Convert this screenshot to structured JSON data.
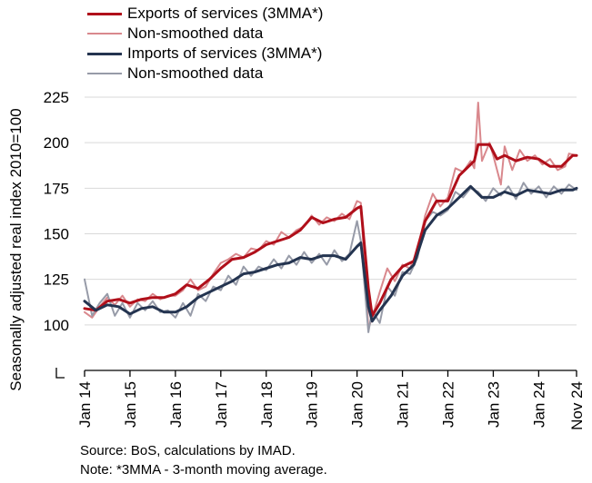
{
  "chart_data": {
    "type": "line",
    "ylabel": "Seasonally adjusted real index 2010=100",
    "ylim": [
      75,
      225
    ],
    "yticks": [
      100,
      125,
      150,
      175,
      200,
      225
    ],
    "x_start": "Jan 14",
    "x_end": "Nov 24",
    "xtick_labels": [
      "Jan 14",
      "Jan 15",
      "Jan 16",
      "Jan 17",
      "Jan 18",
      "Jan 19",
      "Jan 20",
      "Jan 21",
      "Jan 22",
      "Jan 23",
      "Jan 24",
      "Nov 24"
    ],
    "legend_placement": "top-left",
    "grid": "horizontal",
    "series": [
      {
        "name": "Exports of services (3MMA*)",
        "color": "#b00f1a",
        "width": 3,
        "points": [
          [
            "Jan 14",
            109
          ],
          [
            "Apr 14",
            108
          ],
          [
            "Jul 14",
            113
          ],
          [
            "Oct 14",
            114
          ],
          [
            "Jan 15",
            112
          ],
          [
            "Apr 15",
            114
          ],
          [
            "Jul 15",
            115
          ],
          [
            "Oct 15",
            115
          ],
          [
            "Jan 16",
            117
          ],
          [
            "Apr 16",
            122
          ],
          [
            "Jul 16",
            120
          ],
          [
            "Oct 16",
            125
          ],
          [
            "Jan 17",
            131
          ],
          [
            "Apr 17",
            136
          ],
          [
            "Jul 17",
            137
          ],
          [
            "Oct 17",
            140
          ],
          [
            "Jan 18",
            144
          ],
          [
            "Apr 18",
            146
          ],
          [
            "Jul 18",
            148
          ],
          [
            "Oct 18",
            152
          ],
          [
            "Jan 19",
            159
          ],
          [
            "Apr 19",
            156
          ],
          [
            "Jul 19",
            158
          ],
          [
            "Oct 19",
            159
          ],
          [
            "Jan 20",
            164
          ],
          [
            "Feb 20",
            165
          ],
          [
            "Apr 20",
            120
          ],
          [
            "May 20",
            105
          ],
          [
            "Jul 20",
            112
          ],
          [
            "Oct 20",
            125
          ],
          [
            "Jan 21",
            132
          ],
          [
            "Apr 21",
            135
          ],
          [
            "Jul 21",
            157
          ],
          [
            "Oct 21",
            168
          ],
          [
            "Jan 22",
            168
          ],
          [
            "Apr 22",
            182
          ],
          [
            "Jul 22",
            188
          ],
          [
            "Aug 22",
            190
          ],
          [
            "Sep 22",
            199
          ],
          [
            "Dec 22",
            199
          ],
          [
            "Feb 23",
            191
          ],
          [
            "Apr 23",
            193
          ],
          [
            "Jul 23",
            190
          ],
          [
            "Oct 23",
            192
          ],
          [
            "Jan 24",
            191
          ],
          [
            "Apr 24",
            187
          ],
          [
            "Jul 24",
            187
          ],
          [
            "Oct 24",
            193
          ],
          [
            "Nov 24",
            193
          ]
        ]
      },
      {
        "name": "Non-smoothed data",
        "color": "#d9888d",
        "width": 2,
        "points": [
          [
            "Jan 14",
            107
          ],
          [
            "Mar 14",
            104
          ],
          [
            "May 14",
            110
          ],
          [
            "Jul 14",
            115
          ],
          [
            "Sep 14",
            111
          ],
          [
            "Nov 14",
            116
          ],
          [
            "Jan 15",
            110
          ],
          [
            "Mar 15",
            114
          ],
          [
            "May 15",
            113
          ],
          [
            "Jul 15",
            117
          ],
          [
            "Sep 15",
            114
          ],
          [
            "Nov 15",
            116
          ],
          [
            "Jan 16",
            116
          ],
          [
            "Mar 16",
            119
          ],
          [
            "May 16",
            125
          ],
          [
            "Jul 16",
            119
          ],
          [
            "Sep 16",
            121
          ],
          [
            "Nov 16",
            128
          ],
          [
            "Jan 17",
            134
          ],
          [
            "Mar 17",
            136
          ],
          [
            "May 17",
            139
          ],
          [
            "Jul 17",
            137
          ],
          [
            "Sep 17",
            142
          ],
          [
            "Nov 17",
            141
          ],
          [
            "Jan 18",
            146
          ],
          [
            "Mar 18",
            144
          ],
          [
            "May 18",
            151
          ],
          [
            "Jul 18",
            148
          ],
          [
            "Sep 18",
            152
          ],
          [
            "Nov 18",
            154
          ],
          [
            "Jan 19",
            160
          ],
          [
            "Mar 19",
            155
          ],
          [
            "May 19",
            159
          ],
          [
            "Jul 19",
            157
          ],
          [
            "Sep 19",
            161
          ],
          [
            "Nov 19",
            158
          ],
          [
            "Jan 20",
            168
          ],
          [
            "Feb 20",
            167
          ],
          [
            "Apr 20",
            98
          ],
          [
            "May 20",
            104
          ],
          [
            "Jul 20",
            118
          ],
          [
            "Sep 20",
            131
          ],
          [
            "Nov 20",
            124
          ],
          [
            "Jan 21",
            133
          ],
          [
            "Mar 21",
            131
          ],
          [
            "May 21",
            141
          ],
          [
            "Jul 21",
            160
          ],
          [
            "Sep 21",
            172
          ],
          [
            "Nov 21",
            165
          ],
          [
            "Jan 22",
            170
          ],
          [
            "Mar 22",
            186
          ],
          [
            "May 22",
            184
          ],
          [
            "Jul 22",
            190
          ],
          [
            "Aug 22",
            186
          ],
          [
            "Sep 22",
            222
          ],
          [
            "Oct 22",
            190
          ],
          [
            "Dec 22",
            200
          ],
          [
            "Jan 23",
            193
          ],
          [
            "Mar 23",
            177
          ],
          [
            "Apr 23",
            198
          ],
          [
            "Jun 23",
            185
          ],
          [
            "Aug 23",
            196
          ],
          [
            "Oct 23",
            190
          ],
          [
            "Dec 23",
            193
          ],
          [
            "Feb 24",
            188
          ],
          [
            "Apr 24",
            191
          ],
          [
            "Jun 24",
            185
          ],
          [
            "Aug 24",
            187
          ],
          [
            "Sep 24",
            194
          ],
          [
            "Nov 24",
            193
          ]
        ]
      },
      {
        "name": "Imports of services (3MMA*)",
        "color": "#243450",
        "width": 3,
        "points": [
          [
            "Jan 14",
            113
          ],
          [
            "Apr 14",
            108
          ],
          [
            "Jul 14",
            111
          ],
          [
            "Oct 14",
            110
          ],
          [
            "Jan 15",
            106
          ],
          [
            "Apr 15",
            109
          ],
          [
            "Jul 15",
            110
          ],
          [
            "Oct 15",
            107
          ],
          [
            "Jan 16",
            107
          ],
          [
            "Apr 16",
            110
          ],
          [
            "Jul 16",
            115
          ],
          [
            "Oct 16",
            118
          ],
          [
            "Jan 17",
            121
          ],
          [
            "Apr 17",
            124
          ],
          [
            "Jul 17",
            128
          ],
          [
            "Oct 17",
            129
          ],
          [
            "Jan 18",
            131
          ],
          [
            "Apr 18",
            133
          ],
          [
            "Jul 18",
            134
          ],
          [
            "Oct 18",
            137
          ],
          [
            "Jan 19",
            136
          ],
          [
            "Apr 19",
            138
          ],
          [
            "Jul 19",
            138
          ],
          [
            "Oct 19",
            136
          ],
          [
            "Jan 20",
            143
          ],
          [
            "Feb 20",
            145
          ],
          [
            "Apr 20",
            110
          ],
          [
            "May 20",
            102
          ],
          [
            "Jul 20",
            108
          ],
          [
            "Oct 20",
            116
          ],
          [
            "Jan 21",
            127
          ],
          [
            "Apr 21",
            133
          ],
          [
            "Jul 21",
            152
          ],
          [
            "Oct 21",
            160
          ],
          [
            "Jan 22",
            164
          ],
          [
            "Apr 22",
            170
          ],
          [
            "Jul 22",
            176
          ],
          [
            "Oct 22",
            170
          ],
          [
            "Jan 23",
            170
          ],
          [
            "Apr 23",
            173
          ],
          [
            "Jul 23",
            171
          ],
          [
            "Oct 23",
            174
          ],
          [
            "Jan 24",
            173
          ],
          [
            "Apr 24",
            172
          ],
          [
            "Jul 24",
            174
          ],
          [
            "Oct 24",
            174
          ],
          [
            "Nov 24",
            175
          ]
        ]
      },
      {
        "name": "Non-smoothed data",
        "color": "#979ba8",
        "width": 2,
        "points": [
          [
            "Jan 14",
            125
          ],
          [
            "Mar 14",
            105
          ],
          [
            "May 14",
            112
          ],
          [
            "Jul 14",
            117
          ],
          [
            "Sep 14",
            105
          ],
          [
            "Nov 14",
            112
          ],
          [
            "Jan 15",
            104
          ],
          [
            "Mar 15",
            112
          ],
          [
            "May 15",
            108
          ],
          [
            "Jul 15",
            113
          ],
          [
            "Sep 15",
            107
          ],
          [
            "Nov 15",
            108
          ],
          [
            "Jan 16",
            104
          ],
          [
            "Mar 16",
            112
          ],
          [
            "May 16",
            105
          ],
          [
            "Jul 16",
            117
          ],
          [
            "Sep 16",
            113
          ],
          [
            "Nov 16",
            121
          ],
          [
            "Jan 17",
            119
          ],
          [
            "Mar 17",
            127
          ],
          [
            "May 17",
            122
          ],
          [
            "Jul 17",
            132
          ],
          [
            "Sep 17",
            127
          ],
          [
            "Nov 17",
            132
          ],
          [
            "Jan 18",
            130
          ],
          [
            "Mar 18",
            136
          ],
          [
            "May 18",
            131
          ],
          [
            "Jul 18",
            138
          ],
          [
            "Sep 18",
            133
          ],
          [
            "Nov 18",
            140
          ],
          [
            "Jan 19",
            134
          ],
          [
            "Mar 19",
            139
          ],
          [
            "May 19",
            133
          ],
          [
            "Jul 19",
            141
          ],
          [
            "Sep 19",
            135
          ],
          [
            "Nov 19",
            139
          ],
          [
            "Jan 20",
            157
          ],
          [
            "Feb 20",
            146
          ],
          [
            "Apr 20",
            96
          ],
          [
            "May 20",
            108
          ],
          [
            "Jul 20",
            101
          ],
          [
            "Sep 20",
            121
          ],
          [
            "Nov 20",
            116
          ],
          [
            "Jan 21",
            129
          ],
          [
            "Mar 21",
            128
          ],
          [
            "May 21",
            137
          ],
          [
            "Jul 21",
            157
          ],
          [
            "Sep 21",
            162
          ],
          [
            "Nov 21",
            160
          ],
          [
            "Jan 22",
            163
          ],
          [
            "Mar 22",
            173
          ],
          [
            "May 22",
            170
          ],
          [
            "Jul 22",
            175
          ],
          [
            "Sep 22",
            173
          ],
          [
            "Nov 22",
            168
          ],
          [
            "Jan 23",
            175
          ],
          [
            "Mar 23",
            171
          ],
          [
            "May 23",
            176
          ],
          [
            "Jul 23",
            169
          ],
          [
            "Sep 23",
            178
          ],
          [
            "Nov 23",
            172
          ],
          [
            "Jan 24",
            176
          ],
          [
            "Mar 24",
            170
          ],
          [
            "May 24",
            176
          ],
          [
            "Jul 24",
            172
          ],
          [
            "Sep 24",
            177
          ],
          [
            "Nov 24",
            174
          ]
        ]
      }
    ]
  },
  "legend": {
    "items": [
      {
        "label": "Exports of services (3MMA*)",
        "color": "#b00f1a",
        "width": 3
      },
      {
        "label": "Non-smoothed data",
        "color": "#d9888d",
        "width": 2
      },
      {
        "label": "Imports of services (3MMA*)",
        "color": "#243450",
        "width": 3
      },
      {
        "label": "Non-smoothed data",
        "color": "#979ba8",
        "width": 2
      }
    ]
  },
  "notes": {
    "source": "Source: BoS, calculations by IMAD.",
    "note": "Note: *3MMA - 3-month moving average."
  },
  "colors": {
    "grid": "#d9d9d9",
    "axis": "#000000"
  }
}
